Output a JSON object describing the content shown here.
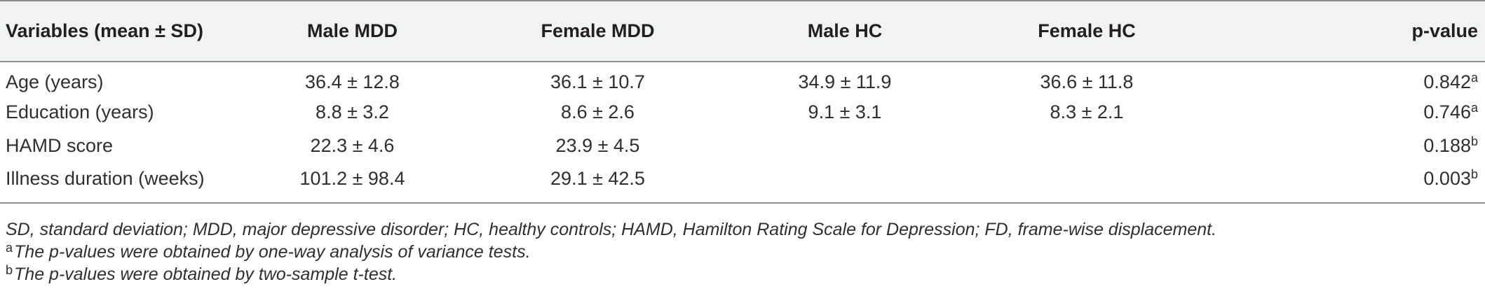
{
  "table": {
    "headers": [
      "Variables (mean ± SD)",
      "Male MDD",
      "Female MDD",
      "Male HC",
      "Female HC",
      "p-value"
    ],
    "rows": [
      {
        "variable": "Age (years)",
        "male_mdd": "36.4 ± 12.8",
        "female_mdd": "36.1 ± 10.7",
        "male_hc": "34.9 ± 11.9",
        "female_hc": "36.6 ± 11.8",
        "p_value": "0.842",
        "p_sup": "a"
      },
      {
        "variable": "Education (years)",
        "male_mdd": "8.8 ± 3.2",
        "female_mdd": "8.6 ± 2.6",
        "male_hc": "9.1 ± 3.1",
        "female_hc": "8.3 ± 2.1",
        "p_value": "0.746",
        "p_sup": "a"
      },
      {
        "variable": "HAMD score",
        "male_mdd": "22.3 ± 4.6",
        "female_mdd": "23.9 ± 4.5",
        "male_hc": "",
        "female_hc": "",
        "p_value": "0.188",
        "p_sup": "b"
      },
      {
        "variable": "Illness duration (weeks)",
        "male_mdd": "101.2 ± 98.4",
        "female_mdd": "29.1 ± 42.5",
        "male_hc": "",
        "female_hc": "",
        "p_value": "0.003",
        "p_sup": "b"
      }
    ]
  },
  "notes": {
    "abbreviations": "SD, standard deviation; MDD, major depressive disorder; HC, healthy controls; HAMD, Hamilton Rating Scale for Depression; FD, frame-wise displacement.",
    "note_a_sup": "a",
    "note_a": "The p-values were obtained by one-way analysis of variance tests.",
    "note_b_sup": "b",
    "note_b": "The p-values were obtained by two-sample t-test."
  },
  "colors": {
    "header_background": "#f1f2f2",
    "rule": "#8c8c8c",
    "text": "#2f2f2f"
  }
}
